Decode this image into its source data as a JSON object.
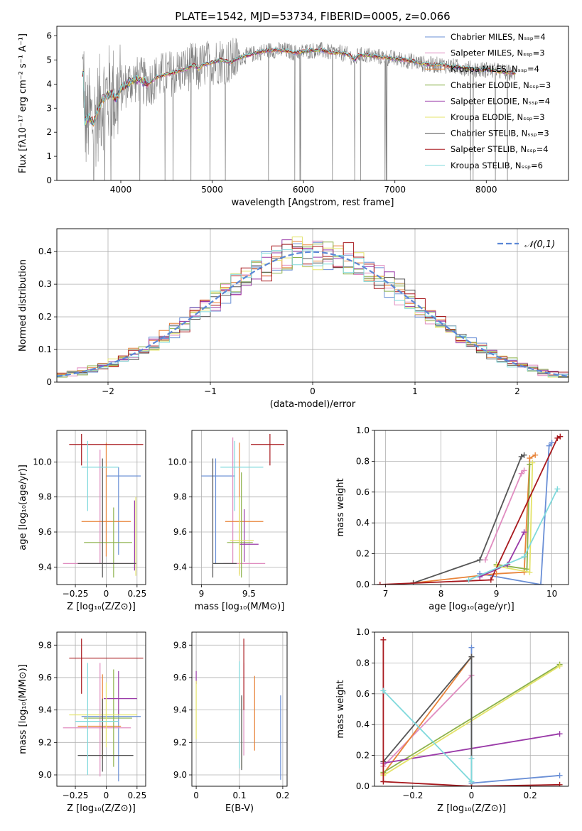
{
  "colors": {
    "chabrier_miles": "#6a8fd6",
    "salpeter_miles": "#e08cc0",
    "kroupa_miles": "#e8843a",
    "chabrier_elodie": "#8bb14a",
    "salpeter_elodie": "#9a3aa8",
    "kroupa_elodie": "#e4e36a",
    "chabrier_stelib": "#555555",
    "salpeter_stelib": "#a8191e",
    "kroupa_stelib": "#7fd9dc",
    "data": "#808080",
    "normal": "#5b87d6"
  },
  "chart_data": [
    {
      "id": "spectrum",
      "type": "line",
      "title": "PLATE=1542, MJD=53734, FIBERID=0005, z=0.066",
      "xlabel": "wavelength [Angstrom, rest frame]",
      "ylabel": "Flux [fλ10⁻¹⁷ erg cm⁻² s⁻¹ A⁻¹]",
      "xlim": [
        3300,
        8900
      ],
      "ylim": [
        0,
        6.4
      ],
      "xticks": [
        4000,
        5000,
        6000,
        7000,
        8000
      ],
      "yticks": [
        0,
        1,
        2,
        3,
        4,
        5,
        6
      ],
      "legend_position": "top-right",
      "legend": [
        "Chabrier MILES, Nₛₛₚ=4",
        "Salpeter MILES, Nₛₛₚ=3",
        "Kroupa MILES, Nₛₛₚ=4",
        "Chabrier ELODIE, Nₛₛₚ=3",
        "Salpeter ELODIE, Nₛₛₚ=4",
        "Kroupa ELODIE, Nₛₛₚ=3",
        "Chabrier STELIB, Nₛₛₚ=3",
        "Salpeter STELIB, Nₛₛₚ=4",
        "Kroupa STELIB, Nₛₛₚ=6"
      ],
      "continuum": [
        [
          3600,
          2.4
        ],
        [
          3650,
          2.6
        ],
        [
          3700,
          2.4
        ],
        [
          3800,
          3.4
        ],
        [
          3900,
          3.6
        ],
        [
          3950,
          3.4
        ],
        [
          4000,
          3.8
        ],
        [
          4100,
          4.1
        ],
        [
          4200,
          4.2
        ],
        [
          4300,
          4.0
        ],
        [
          4400,
          4.3
        ],
        [
          4500,
          4.4
        ],
        [
          4600,
          4.5
        ],
        [
          4700,
          4.6
        ],
        [
          4800,
          4.8
        ],
        [
          4850,
          4.6
        ],
        [
          4900,
          4.8
        ],
        [
          5000,
          4.9
        ],
        [
          5100,
          5.0
        ],
        [
          5200,
          4.9
        ],
        [
          5300,
          5.1
        ],
        [
          5400,
          5.2
        ],
        [
          5500,
          5.3
        ],
        [
          5600,
          5.4
        ],
        [
          5700,
          5.4
        ],
        [
          5800,
          5.4
        ],
        [
          5900,
          5.3
        ],
        [
          6000,
          5.35
        ],
        [
          6100,
          5.4
        ],
        [
          6200,
          5.4
        ],
        [
          6300,
          5.3
        ],
        [
          6400,
          5.3
        ],
        [
          6500,
          5.2
        ],
        [
          6563,
          5.0
        ],
        [
          6600,
          5.2
        ],
        [
          6700,
          5.2
        ],
        [
          6800,
          5.15
        ],
        [
          6900,
          5.1
        ],
        [
          7000,
          5.05
        ],
        [
          7100,
          5.0
        ],
        [
          7200,
          4.95
        ],
        [
          7300,
          4.85
        ],
        [
          7400,
          4.8
        ],
        [
          7500,
          4.8
        ],
        [
          7600,
          4.75
        ],
        [
          7700,
          4.7
        ],
        [
          7800,
          4.65
        ],
        [
          7900,
          4.6
        ],
        [
          8000,
          4.6
        ],
        [
          8100,
          4.55
        ],
        [
          8200,
          4.5
        ],
        [
          8300,
          4.45
        ]
      ],
      "data_extent": [
        3580,
        8330
      ]
    },
    {
      "id": "residuals",
      "type": "bar",
      "xlabel": "(data-model)/error",
      "ylabel": "Normed distribution",
      "xlim": [
        -2.5,
        2.5
      ],
      "ylim": [
        0,
        0.47
      ],
      "xticks": [
        -2,
        -1,
        0,
        1,
        2
      ],
      "yticks": [
        0.0,
        0.1,
        0.2,
        0.3,
        0.4
      ],
      "legend_position": "top-right",
      "legend": [
        "𝒩(0,1)"
      ],
      "bin_width": 0.1
    },
    {
      "id": "age_vs_z",
      "type": "scatter",
      "xlabel": "Z [log₁₀(Z/Z⊙)]",
      "ylabel": "age  [log₁₀(age/yr)]",
      "xlim": [
        -0.4,
        0.32
      ],
      "ylim": [
        9.3,
        10.18
      ],
      "xticks": [
        -0.25,
        0.0,
        0.25
      ],
      "yticks": [
        9.4,
        9.6,
        9.8,
        10.0
      ],
      "points": [
        {
          "model": "chabrier_miles",
          "x": 0.1,
          "xerr": [
            0.1,
            0.18
          ],
          "y": 9.92,
          "yerr": [
            0.45,
            0.05
          ]
        },
        {
          "model": "salpeter_miles",
          "x": -0.05,
          "xerr": [
            0.3,
            0.3
          ],
          "y": 9.42,
          "yerr": [
            0.0,
            0.65
          ]
        },
        {
          "model": "kroupa_miles",
          "x": 0.0,
          "xerr": [
            0.2,
            0.2
          ],
          "y": 9.66,
          "yerr": [
            0.2,
            0.45
          ]
        },
        {
          "model": "chabrier_elodie",
          "x": 0.06,
          "xerr": [
            0.24,
            0.15
          ],
          "y": 9.54,
          "yerr": [
            0.2,
            0.2
          ]
        },
        {
          "model": "salpeter_elodie",
          "x": 0.23,
          "xerr": [
            0.0,
            0.0
          ],
          "y": 9.48,
          "yerr": [
            0.1,
            0.3
          ]
        },
        {
          "model": "kroupa_elodie",
          "x": 0.24,
          "xerr": [
            0.0,
            0.0
          ],
          "y": 9.55,
          "yerr": [
            0.2,
            0.25
          ]
        },
        {
          "model": "chabrier_stelib",
          "x": -0.03,
          "xerr": [
            0.2,
            0.27
          ],
          "y": 9.42,
          "yerr": [
            0.08,
            0.6
          ]
        },
        {
          "model": "salpeter_stelib",
          "x": -0.2,
          "xerr": [
            0.1,
            0.5
          ],
          "y": 10.1,
          "yerr": [
            0.12,
            0.06
          ]
        },
        {
          "model": "kroupa_stelib",
          "x": -0.15,
          "xerr": [
            0.05,
            0.25
          ],
          "y": 9.97,
          "yerr": [
            0.25,
            0.15
          ]
        }
      ]
    },
    {
      "id": "age_vs_mass",
      "type": "scatter",
      "xlabel": "mass [log₁₀(M/M⊙)]",
      "ylabel": "",
      "xlim": [
        8.9,
        9.9
      ],
      "ylim": [
        9.3,
        10.18
      ],
      "xticks": [
        9.0,
        9.5
      ],
      "yticks": [
        9.4,
        9.6,
        9.8,
        10.0
      ],
      "points": [
        {
          "model": "chabrier_miles",
          "x": 9.15,
          "xerr": [
            0.15,
            0.2
          ],
          "y": 9.92,
          "yerr": [
            0.5,
            0.1
          ]
        },
        {
          "model": "salpeter_miles",
          "x": 9.33,
          "xerr": [
            0.1,
            0.34
          ],
          "y": 9.42,
          "yerr": [
            0.0,
            0.72
          ]
        },
        {
          "model": "kroupa_miles",
          "x": 9.4,
          "xerr": [
            0.15,
            0.25
          ],
          "y": 9.66,
          "yerr": [
            0.3,
            0.45
          ]
        },
        {
          "model": "chabrier_elodie",
          "x": 9.42,
          "xerr": [
            0.15,
            0.12
          ],
          "y": 9.54,
          "yerr": [
            0.2,
            0.4
          ]
        },
        {
          "model": "salpeter_elodie",
          "x": 9.45,
          "xerr": [
            0.05,
            0.15
          ],
          "y": 9.53,
          "yerr": [
            0.1,
            0.2
          ]
        },
        {
          "model": "kroupa_elodie",
          "x": 9.4,
          "xerr": [
            0.1,
            0.15
          ],
          "y": 9.55,
          "yerr": [
            0.2,
            0.25
          ]
        },
        {
          "model": "chabrier_stelib",
          "x": 9.12,
          "xerr": [
            0.0,
            0.25
          ],
          "y": 9.42,
          "yerr": [
            0.08,
            0.6
          ]
        },
        {
          "model": "salpeter_stelib",
          "x": 9.72,
          "xerr": [
            0.2,
            0.15
          ],
          "y": 10.1,
          "yerr": [
            0.12,
            0.06
          ]
        },
        {
          "model": "kroupa_stelib",
          "x": 9.35,
          "xerr": [
            0.15,
            0.3
          ],
          "y": 9.97,
          "yerr": [
            0.25,
            0.15
          ]
        }
      ]
    },
    {
      "id": "weight_vs_age",
      "type": "line",
      "xlabel": "age  [log₁₀(age/yr)]",
      "ylabel": "mass weight",
      "xlim": [
        6.8,
        10.3
      ],
      "ylim": [
        0,
        1.0
      ],
      "xticks": [
        7,
        8,
        9,
        10
      ],
      "yticks": [
        0.0,
        0.2,
        0.4,
        0.6,
        0.8,
        1.0
      ],
      "series": [
        {
          "model": "chabrier_miles",
          "x": [
            8.7,
            9.8,
            9.95,
            10.0
          ],
          "y": [
            0.07,
            0.0,
            0.9,
            0.92
          ]
        },
        {
          "model": "salpeter_miles",
          "x": [
            8.8,
            9.45,
            9.5
          ],
          "y": [
            0.16,
            0.72,
            0.74
          ]
        },
        {
          "model": "kroupa_miles",
          "x": [
            7.5,
            9.0,
            9.5,
            9.6,
            9.7
          ],
          "y": [
            0.01,
            0.07,
            0.08,
            0.82,
            0.84
          ]
        },
        {
          "model": "chabrier_elodie",
          "x": [
            9.0,
            9.55,
            9.6
          ],
          "y": [
            0.13,
            0.1,
            0.78
          ]
        },
        {
          "model": "salpeter_elodie",
          "x": [
            8.7,
            9.2,
            9.5
          ],
          "y": [
            0.05,
            0.13,
            0.34
          ]
        },
        {
          "model": "kroupa_elodie",
          "x": [
            9.0,
            9.6,
            9.65
          ],
          "y": [
            0.12,
            0.08,
            0.79
          ]
        },
        {
          "model": "chabrier_stelib",
          "x": [
            7.5,
            8.7,
            9.45,
            9.5
          ],
          "y": [
            0.01,
            0.16,
            0.83,
            0.84
          ]
        },
        {
          "model": "salpeter_stelib",
          "x": [
            6.9,
            8.9,
            10.1,
            10.15
          ],
          "y": [
            0.0,
            0.03,
            0.95,
            0.96
          ]
        },
        {
          "model": "kroupa_stelib",
          "x": [
            8.5,
            9.5,
            10.1
          ],
          "y": [
            0.03,
            0.18,
            0.62
          ]
        }
      ]
    },
    {
      "id": "mass_vs_z",
      "type": "scatter",
      "xlabel": "Z [log₁₀(Z/Z⊙)]",
      "ylabel": "mass [log₁₀(M/M⊙)]",
      "xlim": [
        -0.4,
        0.32
      ],
      "ylim": [
        8.93,
        9.88
      ],
      "xticks": [
        -0.25,
        0.0,
        0.25
      ],
      "yticks": [
        9.0,
        9.2,
        9.4,
        9.6,
        9.8
      ],
      "points": [
        {
          "model": "chabrier_miles",
          "x": 0.1,
          "xerr": [
            0.3,
            0.18
          ],
          "y": 9.36,
          "yerr": [
            0.4,
            0.04
          ]
        },
        {
          "model": "salpeter_miles",
          "x": -0.05,
          "xerr": [
            0.3,
            0.25
          ],
          "y": 9.29,
          "yerr": [
            0.3,
            0.4
          ]
        },
        {
          "model": "kroupa_miles",
          "x": -0.03,
          "xerr": [
            0.2,
            0.15
          ],
          "y": 9.3,
          "yerr": [
            0.2,
            0.32
          ]
        },
        {
          "model": "chabrier_elodie",
          "x": 0.06,
          "xerr": [
            0.24,
            0.15
          ],
          "y": 9.35,
          "yerr": [
            0.3,
            0.3
          ]
        },
        {
          "model": "salpeter_elodie",
          "x": 0.1,
          "xerr": [
            0.12,
            0.15
          ],
          "y": 9.47,
          "yerr": [
            0.1,
            0.17
          ]
        },
        {
          "model": "kroupa_elodie",
          "x": 0.0,
          "xerr": [
            0.3,
            0.25
          ],
          "y": 9.37,
          "yerr": [
            0.2,
            0.2
          ]
        },
        {
          "model": "chabrier_stelib",
          "x": -0.03,
          "xerr": [
            0.2,
            0.25
          ],
          "y": 9.12,
          "yerr": [
            0.1,
            0.35
          ]
        },
        {
          "model": "salpeter_stelib",
          "x": -0.2,
          "xerr": [
            0.1,
            0.5
          ],
          "y": 9.72,
          "yerr": [
            0.22,
            0.12
          ]
        },
        {
          "model": "kroupa_stelib",
          "x": -0.15,
          "xerr": [
            0.1,
            0.25
          ],
          "y": 9.33,
          "yerr": [
            0.33,
            0.36
          ]
        }
      ]
    },
    {
      "id": "mass_vs_ebv",
      "type": "scatter",
      "xlabel": "E(B-V)",
      "ylabel": "",
      "xlim": [
        -0.01,
        0.21
      ],
      "ylim": [
        8.93,
        9.88
      ],
      "xticks": [
        0.0,
        0.1,
        0.2
      ],
      "yticks": [
        9.0,
        9.2,
        9.4,
        9.6,
        9.8
      ],
      "points": [
        {
          "model": "chabrier_miles",
          "x": 0.195,
          "y": 9.23,
          "yerr": [
            0.26,
            0.26
          ]
        },
        {
          "model": "salpeter_miles",
          "x": 0.11,
          "y": 9.37,
          "yerr": [
            0.25,
            0.32
          ]
        },
        {
          "model": "kroupa_miles",
          "x": 0.135,
          "y": 9.38,
          "yerr": [
            0.23,
            0.23
          ]
        },
        {
          "model": "chabrier_elodie",
          "x": 0.105,
          "y": 9.26,
          "yerr": [
            0.22,
            0.22
          ]
        },
        {
          "model": "salpeter_elodie",
          "x": 0.0,
          "y": 9.6,
          "yerr": [
            0.04,
            0.04
          ]
        },
        {
          "model": "kroupa_elodie",
          "x": 0.0,
          "y": 9.4,
          "yerr": [
            0.18,
            0.18
          ]
        },
        {
          "model": "chabrier_stelib",
          "x": 0.105,
          "y": 9.26,
          "yerr": [
            0.23,
            0.23
          ]
        },
        {
          "model": "salpeter_stelib",
          "x": 0.11,
          "y": 9.62,
          "yerr": [
            0.22,
            0.22
          ]
        },
        {
          "model": "kroupa_stelib",
          "x": 0.1,
          "y": 9.37,
          "yerr": [
            0.33,
            0.33
          ]
        }
      ]
    },
    {
      "id": "weight_vs_z",
      "type": "line",
      "xlabel": "Z [log₁₀(Z/Z⊙)]",
      "ylabel": "mass weight",
      "xlim": [
        -0.33,
        0.33
      ],
      "ylim": [
        0,
        1.0
      ],
      "xticks": [
        -0.2,
        0.0,
        0.2
      ],
      "yticks": [
        0.0,
        0.2,
        0.4,
        0.6,
        0.8,
        1.0
      ],
      "series": [
        {
          "model": "chabrier_miles",
          "x": [
            0.0,
            0.0,
            0.3
          ],
          "y": [
            0.9,
            0.02,
            0.07
          ]
        },
        {
          "model": "salpeter_miles",
          "x": [
            -0.3,
            0.0
          ],
          "y": [
            0.13,
            0.72
          ]
        },
        {
          "model": "kroupa_miles",
          "x": [
            -0.3,
            0.0
          ],
          "y": [
            0.08,
            0.84
          ]
        },
        {
          "model": "chabrier_elodie",
          "x": [
            -0.3,
            0.3
          ],
          "y": [
            0.09,
            0.79
          ]
        },
        {
          "model": "salpeter_elodie",
          "x": [
            -0.3,
            0.3
          ],
          "y": [
            0.15,
            0.34
          ]
        },
        {
          "model": "kroupa_elodie",
          "x": [
            -0.3,
            0.3
          ],
          "y": [
            0.07,
            0.78
          ]
        },
        {
          "model": "chabrier_stelib",
          "x": [
            -0.3,
            0.0,
            0.0
          ],
          "y": [
            0.16,
            0.84,
            0.0
          ]
        },
        {
          "model": "salpeter_stelib",
          "x": [
            -0.3,
            -0.3,
            0.0,
            0.3
          ],
          "y": [
            0.95,
            0.03,
            0.0,
            0.01
          ]
        },
        {
          "model": "kroupa_stelib",
          "x": [
            -0.3,
            0.0,
            0.0
          ],
          "y": [
            0.62,
            0.03,
            0.18
          ]
        }
      ]
    }
  ]
}
